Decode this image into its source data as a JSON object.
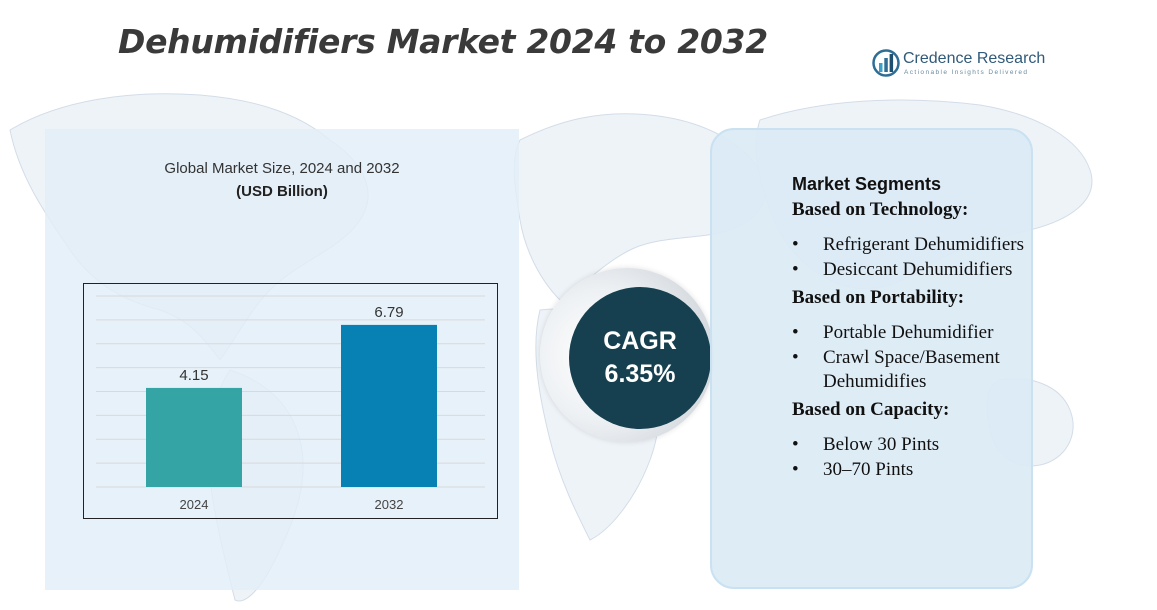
{
  "header": {
    "title": "Dehumidifiers Market 2024 to 2032"
  },
  "logo": {
    "name": "Credence Research",
    "tagline": "Actionable Insights Delivered",
    "icon": "bar-chart-logo-icon"
  },
  "chart_data": {
    "type": "bar",
    "title": "Global Market Size, 2024 and 2032",
    "unit": "(USD Billion)",
    "categories": [
      "2024",
      "2032"
    ],
    "values": [
      4.15,
      6.79
    ],
    "data_labels": [
      "4.15",
      "6.79"
    ],
    "colors": [
      "#35a4a4",
      "#0780b4"
    ],
    "ylim": [
      0,
      8
    ],
    "grid": true,
    "xlabel": "",
    "ylabel": ""
  },
  "cagr": {
    "label": "CAGR",
    "value": "6.35%"
  },
  "segments": {
    "title": "Market Segments",
    "groups": [
      {
        "heading": "Based on Technology:",
        "items": [
          "Refrigerant Dehumidifiers",
          "Desiccant Dehumidifiers"
        ]
      },
      {
        "heading": "Based on Portability:",
        "items": [
          "Portable Dehumidifier",
          "Crawl Space/Basement Dehumidifies"
        ]
      },
      {
        "heading": "Based on Capacity:",
        "items": [
          "Below 30 Pints",
          "30–70 Pints"
        ]
      }
    ],
    "bullet": "•"
  },
  "colors": {
    "panel": "#e2eef8",
    "cagr_fill": "#16404f",
    "title_text": "#3a3a3a"
  }
}
